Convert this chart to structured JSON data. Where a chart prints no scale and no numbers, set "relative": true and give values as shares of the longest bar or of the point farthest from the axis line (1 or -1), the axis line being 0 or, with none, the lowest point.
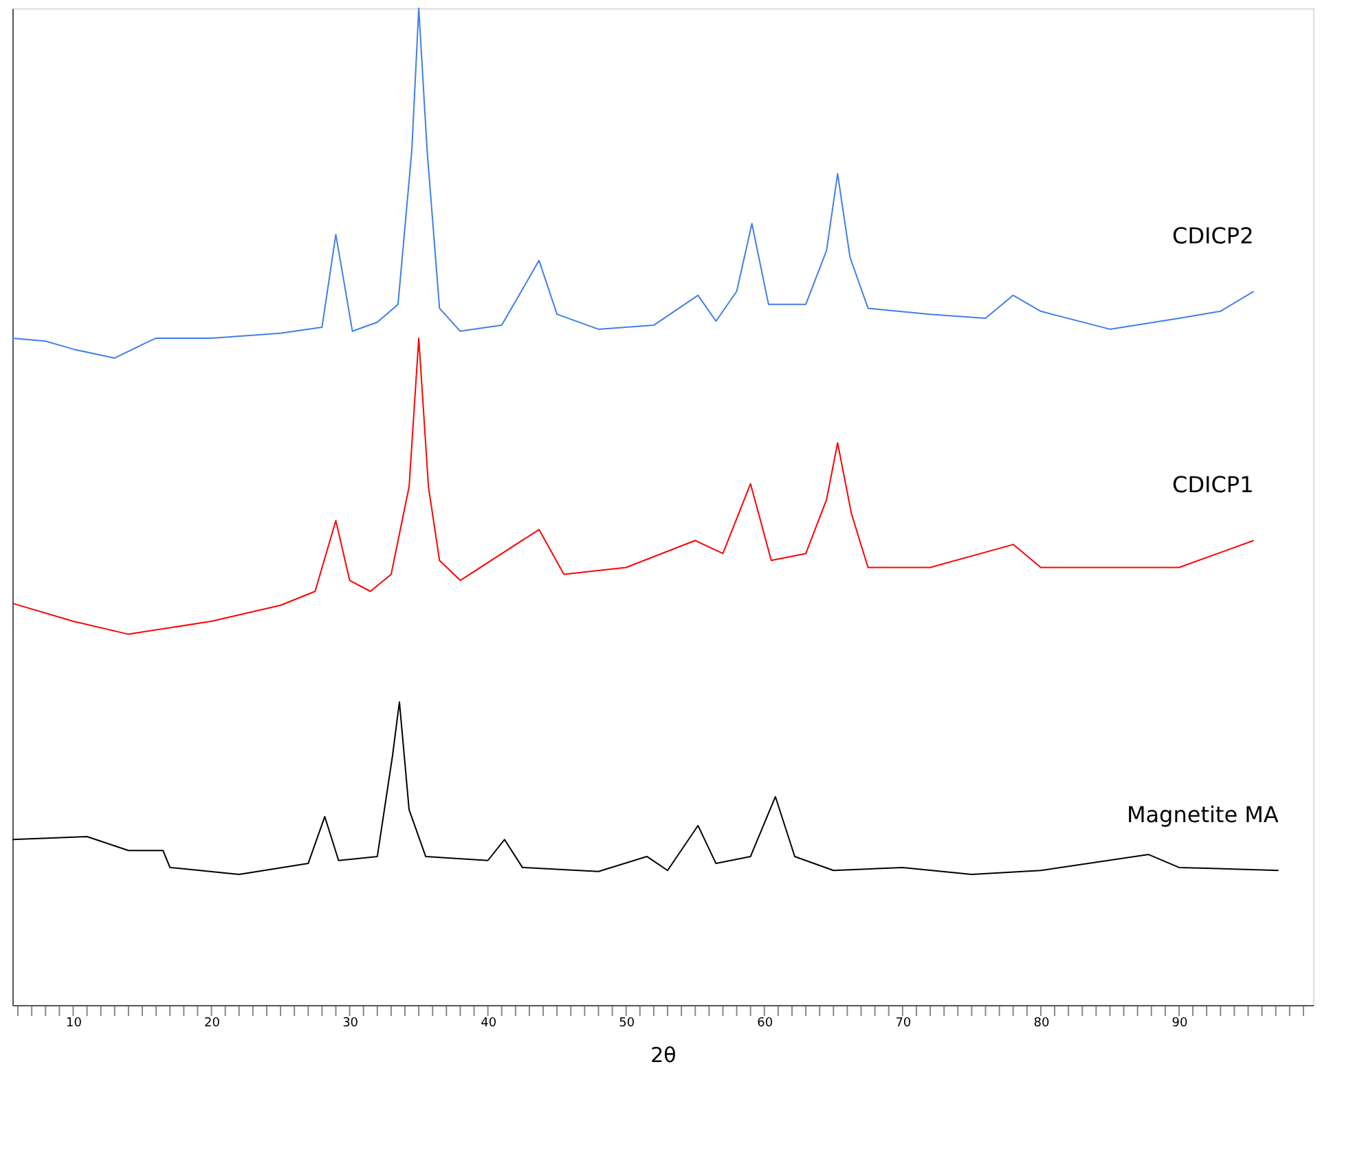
{
  "chart_data": {
    "type": "line",
    "relative": true,
    "xlabel": "2θ",
    "xlim": [
      5.6,
      99.7
    ],
    "xticks": [
      {
        "value": 6,
        "label": null
      },
      {
        "value": 7,
        "label": null
      },
      {
        "value": 8,
        "label": null
      },
      {
        "value": 9,
        "label": null
      },
      10,
      {
        "value": 11,
        "label": null
      },
      {
        "value": 12,
        "label": null
      },
      {
        "value": 13,
        "label": null
      },
      {
        "value": 14,
        "label": null
      },
      {
        "value": 15,
        "label": null
      },
      {
        "value": 16,
        "label": null
      },
      {
        "value": 17,
        "label": null
      },
      {
        "value": 18,
        "label": null
      },
      {
        "value": 19,
        "label": null
      },
      20,
      {
        "value": 21,
        "label": null
      },
      {
        "value": 22,
        "label": null
      },
      {
        "value": 23,
        "label": null
      },
      {
        "value": 24,
        "label": null
      },
      {
        "value": 25,
        "label": null
      },
      {
        "value": 26,
        "label": null
      },
      {
        "value": 27,
        "label": null
      },
      {
        "value": 28,
        "label": null
      },
      {
        "value": 29,
        "label": null
      },
      30,
      {
        "value": 31,
        "label": null
      },
      {
        "value": 32,
        "label": null
      },
      {
        "value": 33,
        "label": null
      },
      {
        "value": 34,
        "label": null
      },
      {
        "value": 35,
        "label": null
      },
      {
        "value": 36,
        "label": null
      },
      {
        "value": 37,
        "label": null
      },
      {
        "value": 38,
        "label": null
      },
      {
        "value": 39,
        "label": null
      },
      40,
      {
        "value": 41,
        "label": null
      },
      {
        "value": 42,
        "label": null
      },
      {
        "value": 43,
        "label": null
      },
      {
        "value": 44,
        "label": null
      },
      {
        "value": 45,
        "label": null
      },
      {
        "value": 46,
        "label": null
      },
      {
        "value": 47,
        "label": null
      },
      {
        "value": 48,
        "label": null
      },
      {
        "value": 49,
        "label": null
      },
      50,
      {
        "value": 51,
        "label": null
      },
      {
        "value": 52,
        "label": null
      },
      {
        "value": 53,
        "label": null
      },
      {
        "value": 54,
        "label": null
      },
      {
        "value": 55,
        "label": null
      },
      {
        "value": 56,
        "label": null
      },
      {
        "value": 57,
        "label": null
      },
      {
        "value": 58,
        "label": null
      },
      {
        "value": 59,
        "label": null
      },
      60,
      {
        "value": 61,
        "label": null
      },
      {
        "value": 62,
        "label": null
      },
      {
        "value": 63,
        "label": null
      },
      {
        "value": 64,
        "label": null
      },
      {
        "value": 65,
        "label": null
      },
      {
        "value": 66,
        "label": null
      },
      {
        "value": 67,
        "label": null
      },
      {
        "value": 68,
        "label": null
      },
      {
        "value": 69,
        "label": null
      },
      70,
      {
        "value": 71,
        "label": null
      },
      {
        "value": 72,
        "label": null
      },
      {
        "value": 73,
        "label": null
      },
      {
        "value": 74,
        "label": null
      },
      {
        "value": 75,
        "label": null
      },
      {
        "value": 76,
        "label": null
      },
      {
        "value": 77,
        "label": null
      },
      {
        "value": 78,
        "label": null
      },
      {
        "value": 79,
        "label": null
      },
      80,
      {
        "value": 81,
        "label": null
      },
      {
        "value": 82,
        "label": null
      },
      {
        "value": 83,
        "label": null
      },
      {
        "value": 84,
        "label": null
      },
      {
        "value": 85,
        "label": null
      },
      {
        "value": 86,
        "label": null
      },
      {
        "value": 87,
        "label": null
      },
      {
        "value": 88,
        "label": null
      },
      {
        "value": 89,
        "label": null
      },
      90,
      {
        "value": 91,
        "label": null
      },
      {
        "value": 92,
        "label": null
      },
      {
        "value": 93,
        "label": null
      },
      {
        "value": 94,
        "label": null
      },
      {
        "value": 95,
        "label": null
      },
      {
        "value": 96,
        "label": null
      },
      {
        "value": 97,
        "label": null
      },
      {
        "value": 98,
        "label": null
      },
      {
        "value": 99,
        "label": null
      }
    ],
    "tick_labels": "x",
    "grid": false,
    "legend": false,
    "marker": "none",
    "line_style": "solid",
    "series": [
      {
        "name": "CDICP2",
        "color": "#3f7fe8",
        "x": [
          5.6,
          8,
          10,
          13,
          15.5,
          16,
          20,
          25,
          28,
          29,
          30.2,
          32,
          33.5,
          34.5,
          35,
          35.6,
          36.5,
          38,
          41,
          43.7,
          45,
          48,
          52,
          55.2,
          56.5,
          58,
          59.1,
          60.3,
          63,
          64.5,
          65.3,
          66.2,
          67.5,
          72,
          76,
          78,
          80,
          85,
          90,
          93,
          95.4
        ],
        "values": [
          0.669,
          0.666,
          0.658,
          0.649,
          0.666,
          0.669,
          0.669,
          0.674,
          0.68,
          0.773,
          0.676,
          0.685,
          0.703,
          0.858,
          1.0,
          0.858,
          0.699,
          0.676,
          0.682,
          0.747,
          0.693,
          0.678,
          0.682,
          0.712,
          0.686,
          0.716,
          0.784,
          0.703,
          0.703,
          0.757,
          0.834,
          0.75,
          0.699,
          0.693,
          0.689,
          0.712,
          0.696,
          0.678,
          0.689,
          0.696,
          0.716
        ]
      },
      {
        "name": "CDICP1",
        "color": "#ff0000",
        "x": [
          5.6,
          10,
          14,
          20,
          25,
          27.5,
          29,
          30,
          31.5,
          33,
          34.3,
          35,
          35.7,
          36.5,
          38,
          43.7,
          45.5,
          50,
          55,
          57,
          59,
          60.5,
          63,
          64.5,
          65.3,
          66.3,
          67.5,
          72,
          78,
          80,
          85,
          90,
          95.4
        ],
        "values": [
          0.403,
          0.385,
          0.372,
          0.385,
          0.401,
          0.415,
          0.486,
          0.426,
          0.415,
          0.432,
          0.52,
          0.669,
          0.52,
          0.446,
          0.426,
          0.477,
          0.432,
          0.439,
          0.466,
          0.453,
          0.523,
          0.446,
          0.453,
          0.507,
          0.564,
          0.493,
          0.439,
          0.439,
          0.462,
          0.439,
          0.439,
          0.439,
          0.466
        ]
      },
      {
        "name": "Magnetite MA",
        "color": "#000000",
        "x": [
          5.6,
          11,
          14,
          16.5,
          17,
          22,
          27,
          28.2,
          29.2,
          32,
          33.1,
          33.6,
          34.3,
          35.5,
          40,
          41.2,
          42.5,
          48,
          51.5,
          53,
          55.2,
          56.5,
          59,
          60.8,
          62.2,
          65,
          70,
          75,
          80,
          87.8,
          90,
          97.2
        ],
        "values": [
          0.166,
          0.169,
          0.155,
          0.155,
          0.138,
          0.131,
          0.142,
          0.189,
          0.145,
          0.149,
          0.25,
          0.304,
          0.196,
          0.149,
          0.145,
          0.166,
          0.138,
          0.134,
          0.149,
          0.135,
          0.18,
          0.142,
          0.149,
          0.209,
          0.149,
          0.135,
          0.138,
          0.131,
          0.135,
          0.151,
          0.138,
          0.135
        ]
      }
    ]
  }
}
